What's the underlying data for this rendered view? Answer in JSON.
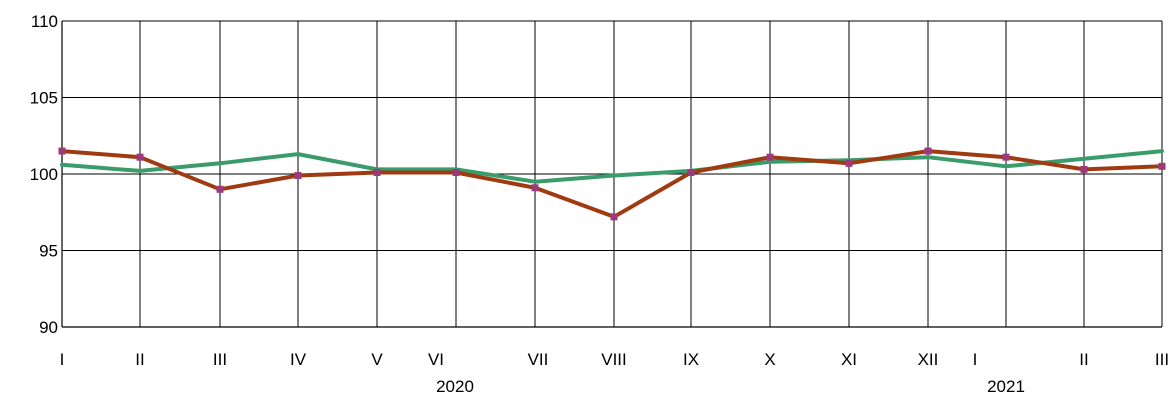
{
  "chart_data": {
    "type": "line",
    "title": "",
    "xlabel": "",
    "ylabel": "",
    "ylim": [
      90,
      110
    ],
    "yticks": [
      "90",
      "95",
      "100",
      "105",
      "110"
    ],
    "grid": true,
    "categories": [
      "I",
      "II",
      "III",
      "IV",
      "V",
      "VI",
      "VII",
      "VIII",
      "IX",
      "X",
      "XI",
      "XII",
      "I",
      "II",
      "III"
    ],
    "year_labels": [
      {
        "text": "2020",
        "span": [
          "I",
          "XII"
        ]
      },
      {
        "text": "2021",
        "span": [
          "I",
          "III"
        ]
      }
    ],
    "series": [
      {
        "color": "#3a9b6b",
        "marker": false,
        "points": [
          {
            "cat": 0,
            "y": 100.6
          },
          {
            "cat": 1,
            "y": 100.2
          },
          {
            "cat": 2,
            "y": 100.7
          },
          {
            "cat": 3,
            "y": 101.3
          },
          {
            "cat": 4,
            "y": 100.3
          },
          {
            "cat": 5,
            "y": 100.3
          },
          {
            "cat": 6,
            "y": 99.5
          },
          {
            "cat": 7,
            "y": 99.9
          },
          {
            "cat": 8,
            "y": 100.2
          },
          {
            "cat": 9,
            "y": 100.8
          },
          {
            "cat": 10,
            "y": 100.9
          },
          {
            "cat": 11,
            "y": 101.1
          },
          {
            "cat": 12,
            "y": 100.5
          },
          {
            "cat": 13,
            "y": 101.0
          },
          {
            "cat": 14,
            "y": 101.5
          }
        ]
      },
      {
        "color": "#a03a10",
        "marker": true,
        "marker_color": "#9b3b7b",
        "points": [
          {
            "cat": 0,
            "y": 101.5
          },
          {
            "cat": 1,
            "y": 101.1
          },
          {
            "cat": 2,
            "y": 99.0
          },
          {
            "cat": 3,
            "y": 99.9
          },
          {
            "cat": 4,
            "y": 100.1
          },
          {
            "cat": 5,
            "y": 100.1
          },
          {
            "cat": 6,
            "y": 99.1
          },
          {
            "cat": 7,
            "y": 97.2
          },
          {
            "cat": 8,
            "y": 100.1
          },
          {
            "cat": 9,
            "y": 101.1
          },
          {
            "cat": 10,
            "y": 100.7
          },
          {
            "cat": 11,
            "y": 101.5
          },
          {
            "cat": 12,
            "y": 101.1
          },
          {
            "cat": 13,
            "y": 100.3
          },
          {
            "cat": 14,
            "y": 100.5
          }
        ]
      }
    ]
  }
}
